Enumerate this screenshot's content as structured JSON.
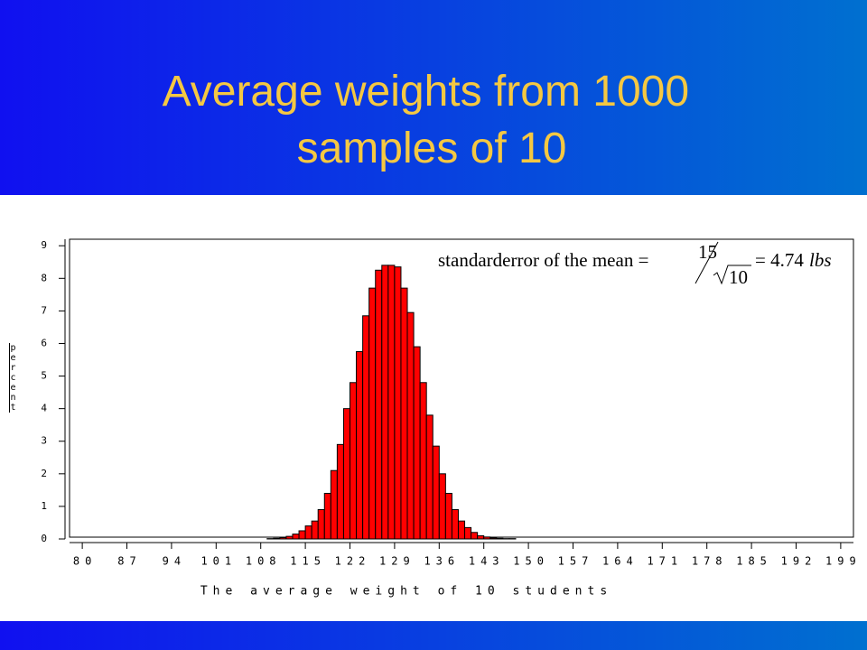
{
  "title": "Average weights from 1000 samples of 10",
  "chart_data": {
    "type": "histogram",
    "xlabel": "The average weight of 10 students",
    "ylabel": "percent",
    "annotation": {
      "lhs": "standarderror of the mean =",
      "numerator": "15",
      "denominator": "10",
      "rhs": "= 4.74",
      "unit": "lbs"
    },
    "bins": [
      109,
      110,
      111,
      112,
      113,
      114,
      115,
      116,
      117,
      118,
      119,
      120,
      121,
      122,
      123,
      124,
      125,
      126,
      127,
      128,
      129,
      130,
      131,
      132,
      133,
      134,
      135,
      136,
      137,
      138,
      139,
      140,
      141,
      142,
      143,
      144,
      145,
      146,
      147,
      148
    ],
    "values": [
      0.01,
      0.02,
      0.04,
      0.08,
      0.15,
      0.25,
      0.4,
      0.55,
      0.9,
      1.4,
      2.1,
      2.9,
      4.0,
      4.8,
      5.75,
      6.85,
      7.7,
      8.25,
      8.4,
      8.4,
      8.35,
      7.7,
      6.95,
      5.9,
      4.8,
      3.8,
      2.85,
      2.0,
      1.4,
      0.9,
      0.55,
      0.35,
      0.2,
      0.1,
      0.06,
      0.03,
      0.02,
      0.01,
      0.01
    ],
    "color": "#ff0000",
    "xlim": [
      78,
      201
    ],
    "ylim": [
      0,
      9.2
    ],
    "xticks": [
      80,
      87,
      94,
      101,
      108,
      115,
      122,
      129,
      136,
      143,
      150,
      157,
      164,
      171,
      178,
      185,
      192,
      199
    ],
    "yticks": [
      0,
      1,
      2,
      3,
      4,
      5,
      6,
      7,
      8,
      9
    ]
  }
}
